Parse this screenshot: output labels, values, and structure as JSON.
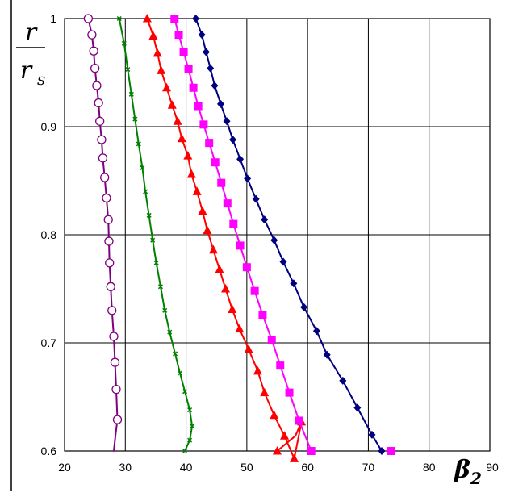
{
  "chart_data": {
    "type": "line",
    "title": "",
    "x_axis": {
      "label_main": "β",
      "label_sub": "2",
      "min": 20,
      "max": 90,
      "ticks": [
        "20",
        "30",
        "40",
        "50",
        "60",
        "70",
        "80",
        "90"
      ]
    },
    "y_axis": {
      "label_num": "r",
      "label_den": "r",
      "label_den_sub": "s",
      "min": 0.6,
      "max": 1.0,
      "ticks": [
        "0.6",
        "0.7",
        "0.8",
        "0.9",
        "1"
      ]
    },
    "grid": true,
    "legend": "none",
    "series": [
      {
        "color": "#800080",
        "marker": "circle-open",
        "points": [
          [
            23.9,
            1.0
          ],
          [
            24.5,
            0.985
          ],
          [
            24.8,
            0.97
          ],
          [
            25.0,
            0.954
          ],
          [
            25.3,
            0.938
          ],
          [
            25.6,
            0.922
          ],
          [
            25.8,
            0.905
          ],
          [
            26.1,
            0.888
          ],
          [
            26.3,
            0.871
          ],
          [
            26.6,
            0.853
          ],
          [
            26.9,
            0.834
          ],
          [
            27.2,
            0.814
          ],
          [
            27.3,
            0.794
          ],
          [
            27.4,
            0.774
          ],
          [
            27.6,
            0.752
          ],
          [
            27.8,
            0.73
          ],
          [
            28.1,
            0.706
          ],
          [
            28.3,
            0.682
          ],
          [
            28.5,
            0.657
          ],
          [
            28.7,
            0.629
          ]
        ],
        "curve": [
          [
            23.9,
            1.0
          ],
          [
            24.5,
            0.985
          ],
          [
            24.8,
            0.97
          ],
          [
            25.0,
            0.954
          ],
          [
            25.3,
            0.938
          ],
          [
            25.6,
            0.922
          ],
          [
            25.8,
            0.905
          ],
          [
            26.1,
            0.888
          ],
          [
            26.3,
            0.871
          ],
          [
            26.6,
            0.853
          ],
          [
            26.9,
            0.834
          ],
          [
            27.2,
            0.814
          ],
          [
            27.3,
            0.794
          ],
          [
            27.4,
            0.774
          ],
          [
            27.6,
            0.752
          ],
          [
            27.8,
            0.73
          ],
          [
            28.1,
            0.706
          ],
          [
            28.3,
            0.682
          ],
          [
            28.5,
            0.657
          ],
          [
            28.7,
            0.629
          ],
          [
            28.4,
            0.615
          ],
          [
            28.1,
            0.6
          ]
        ]
      },
      {
        "color": "#008000",
        "marker": "x",
        "points": [
          [
            29.0,
            1.0
          ],
          [
            29.8,
            0.977
          ],
          [
            30.4,
            0.953
          ],
          [
            31.0,
            0.93
          ],
          [
            31.6,
            0.907
          ],
          [
            32.2,
            0.884
          ],
          [
            32.8,
            0.862
          ],
          [
            33.3,
            0.84
          ],
          [
            33.9,
            0.818
          ],
          [
            34.5,
            0.795
          ],
          [
            35.1,
            0.774
          ],
          [
            35.8,
            0.752
          ],
          [
            36.5,
            0.73
          ],
          [
            37.3,
            0.71
          ],
          [
            38.2,
            0.69
          ],
          [
            39.0,
            0.672
          ],
          [
            39.8,
            0.655
          ],
          [
            40.6,
            0.638
          ],
          [
            41.0,
            0.623
          ],
          [
            40.6,
            0.61
          ],
          [
            39.8,
            0.6
          ]
        ],
        "curve": [
          [
            29.0,
            1.0
          ],
          [
            29.8,
            0.977
          ],
          [
            30.4,
            0.953
          ],
          [
            31.0,
            0.93
          ],
          [
            31.6,
            0.907
          ],
          [
            32.2,
            0.884
          ],
          [
            32.8,
            0.862
          ],
          [
            33.3,
            0.84
          ],
          [
            33.9,
            0.818
          ],
          [
            34.5,
            0.795
          ],
          [
            35.1,
            0.774
          ],
          [
            35.8,
            0.752
          ],
          [
            36.5,
            0.73
          ],
          [
            37.3,
            0.71
          ],
          [
            38.2,
            0.69
          ],
          [
            39.0,
            0.672
          ],
          [
            39.8,
            0.655
          ],
          [
            40.6,
            0.638
          ],
          [
            41.0,
            0.623
          ],
          [
            40.6,
            0.61
          ],
          [
            39.8,
            0.6
          ]
        ]
      },
      {
        "color": "#ff0000",
        "marker": "triangle",
        "points": [
          [
            33.6,
            1.0
          ],
          [
            34.6,
            0.984
          ],
          [
            35.3,
            0.968
          ],
          [
            35.9,
            0.952
          ],
          [
            36.8,
            0.936
          ],
          [
            37.7,
            0.92
          ],
          [
            38.6,
            0.905
          ],
          [
            39.3,
            0.889
          ],
          [
            40.3,
            0.873
          ],
          [
            40.9,
            0.856
          ],
          [
            41.8,
            0.84
          ],
          [
            42.7,
            0.822
          ],
          [
            43.5,
            0.804
          ],
          [
            44.5,
            0.786
          ],
          [
            45.5,
            0.768
          ],
          [
            46.5,
            0.75
          ],
          [
            47.6,
            0.731
          ],
          [
            48.8,
            0.713
          ],
          [
            50.3,
            0.694
          ],
          [
            51.8,
            0.674
          ],
          [
            52.9,
            0.654
          ],
          [
            54.5,
            0.633
          ],
          [
            56.2,
            0.614
          ],
          [
            57.8,
            0.593
          ],
          [
            59.0,
            0.627
          ],
          [
            55.0,
            0.6
          ]
        ],
        "curve": [
          [
            33.6,
            1.0
          ],
          [
            34.6,
            0.984
          ],
          [
            35.3,
            0.968
          ],
          [
            35.9,
            0.952
          ],
          [
            36.8,
            0.936
          ],
          [
            37.7,
            0.92
          ],
          [
            38.6,
            0.905
          ],
          [
            39.3,
            0.889
          ],
          [
            40.3,
            0.873
          ],
          [
            40.9,
            0.856
          ],
          [
            41.8,
            0.84
          ],
          [
            42.7,
            0.822
          ],
          [
            43.5,
            0.804
          ],
          [
            44.5,
            0.786
          ],
          [
            45.5,
            0.768
          ],
          [
            46.5,
            0.75
          ],
          [
            47.6,
            0.731
          ],
          [
            48.8,
            0.713
          ],
          [
            50.3,
            0.694
          ],
          [
            51.8,
            0.674
          ],
          [
            52.9,
            0.654
          ],
          [
            54.5,
            0.633
          ],
          [
            56.2,
            0.614
          ],
          [
            57.8,
            0.593
          ],
          [
            59.0,
            0.627
          ],
          [
            58.0,
            0.614
          ],
          [
            55.0,
            0.6
          ]
        ]
      },
      {
        "color": "#ff00ff",
        "marker": "square",
        "points": [
          [
            38.1,
            1.0
          ],
          [
            38.8,
            0.985
          ],
          [
            39.6,
            0.969
          ],
          [
            40.4,
            0.953
          ],
          [
            41.2,
            0.936
          ],
          [
            42.0,
            0.919
          ],
          [
            42.9,
            0.902
          ],
          [
            43.8,
            0.885
          ],
          [
            44.8,
            0.867
          ],
          [
            45.8,
            0.848
          ],
          [
            46.8,
            0.829
          ],
          [
            47.8,
            0.81
          ],
          [
            48.9,
            0.79
          ],
          [
            50.0,
            0.77
          ],
          [
            51.3,
            0.748
          ],
          [
            52.6,
            0.726
          ],
          [
            54.1,
            0.703
          ],
          [
            55.5,
            0.679
          ],
          [
            57.0,
            0.654
          ],
          [
            58.6,
            0.628
          ],
          [
            60.6,
            0.6
          ],
          [
            73.8,
            0.6
          ]
        ],
        "curve": [
          [
            38.1,
            1.0
          ],
          [
            38.8,
            0.985
          ],
          [
            39.6,
            0.969
          ],
          [
            40.4,
            0.953
          ],
          [
            41.2,
            0.936
          ],
          [
            42.0,
            0.919
          ],
          [
            42.9,
            0.902
          ],
          [
            43.8,
            0.885
          ],
          [
            44.8,
            0.867
          ],
          [
            45.8,
            0.848
          ],
          [
            46.8,
            0.829
          ],
          [
            47.8,
            0.81
          ],
          [
            48.9,
            0.79
          ],
          [
            50.0,
            0.77
          ],
          [
            51.3,
            0.748
          ],
          [
            52.6,
            0.726
          ],
          [
            54.1,
            0.703
          ],
          [
            55.5,
            0.679
          ],
          [
            57.0,
            0.654
          ],
          [
            58.6,
            0.628
          ],
          [
            60.6,
            0.6
          ]
        ]
      },
      {
        "color": "#000080",
        "marker": "diamond",
        "points": [
          [
            41.6,
            1.0
          ],
          [
            42.6,
            0.985
          ],
          [
            43.3,
            0.969
          ],
          [
            44.0,
            0.954
          ],
          [
            44.7,
            0.938
          ],
          [
            45.7,
            0.921
          ],
          [
            46.7,
            0.905
          ],
          [
            47.7,
            0.888
          ],
          [
            48.9,
            0.87
          ],
          [
            50.1,
            0.852
          ],
          [
            51.5,
            0.833
          ],
          [
            52.9,
            0.814
          ],
          [
            54.5,
            0.795
          ],
          [
            56.0,
            0.775
          ],
          [
            57.7,
            0.755
          ],
          [
            59.4,
            0.733
          ],
          [
            61.5,
            0.711
          ],
          [
            63.2,
            0.689
          ],
          [
            65.8,
            0.665
          ],
          [
            68.2,
            0.64
          ],
          [
            70.6,
            0.615
          ],
          [
            72.2,
            0.6
          ]
        ],
        "curve": [
          [
            41.6,
            1.0
          ],
          [
            42.6,
            0.985
          ],
          [
            43.3,
            0.969
          ],
          [
            44.0,
            0.954
          ],
          [
            44.7,
            0.938
          ],
          [
            45.7,
            0.921
          ],
          [
            46.7,
            0.905
          ],
          [
            47.7,
            0.888
          ],
          [
            48.9,
            0.87
          ],
          [
            50.1,
            0.852
          ],
          [
            51.5,
            0.833
          ],
          [
            52.9,
            0.814
          ],
          [
            54.5,
            0.795
          ],
          [
            56.0,
            0.775
          ],
          [
            57.7,
            0.755
          ],
          [
            59.4,
            0.733
          ],
          [
            61.5,
            0.711
          ],
          [
            63.2,
            0.689
          ],
          [
            65.8,
            0.665
          ],
          [
            68.2,
            0.64
          ],
          [
            70.6,
            0.615
          ],
          [
            72.2,
            0.6
          ]
        ]
      }
    ]
  }
}
